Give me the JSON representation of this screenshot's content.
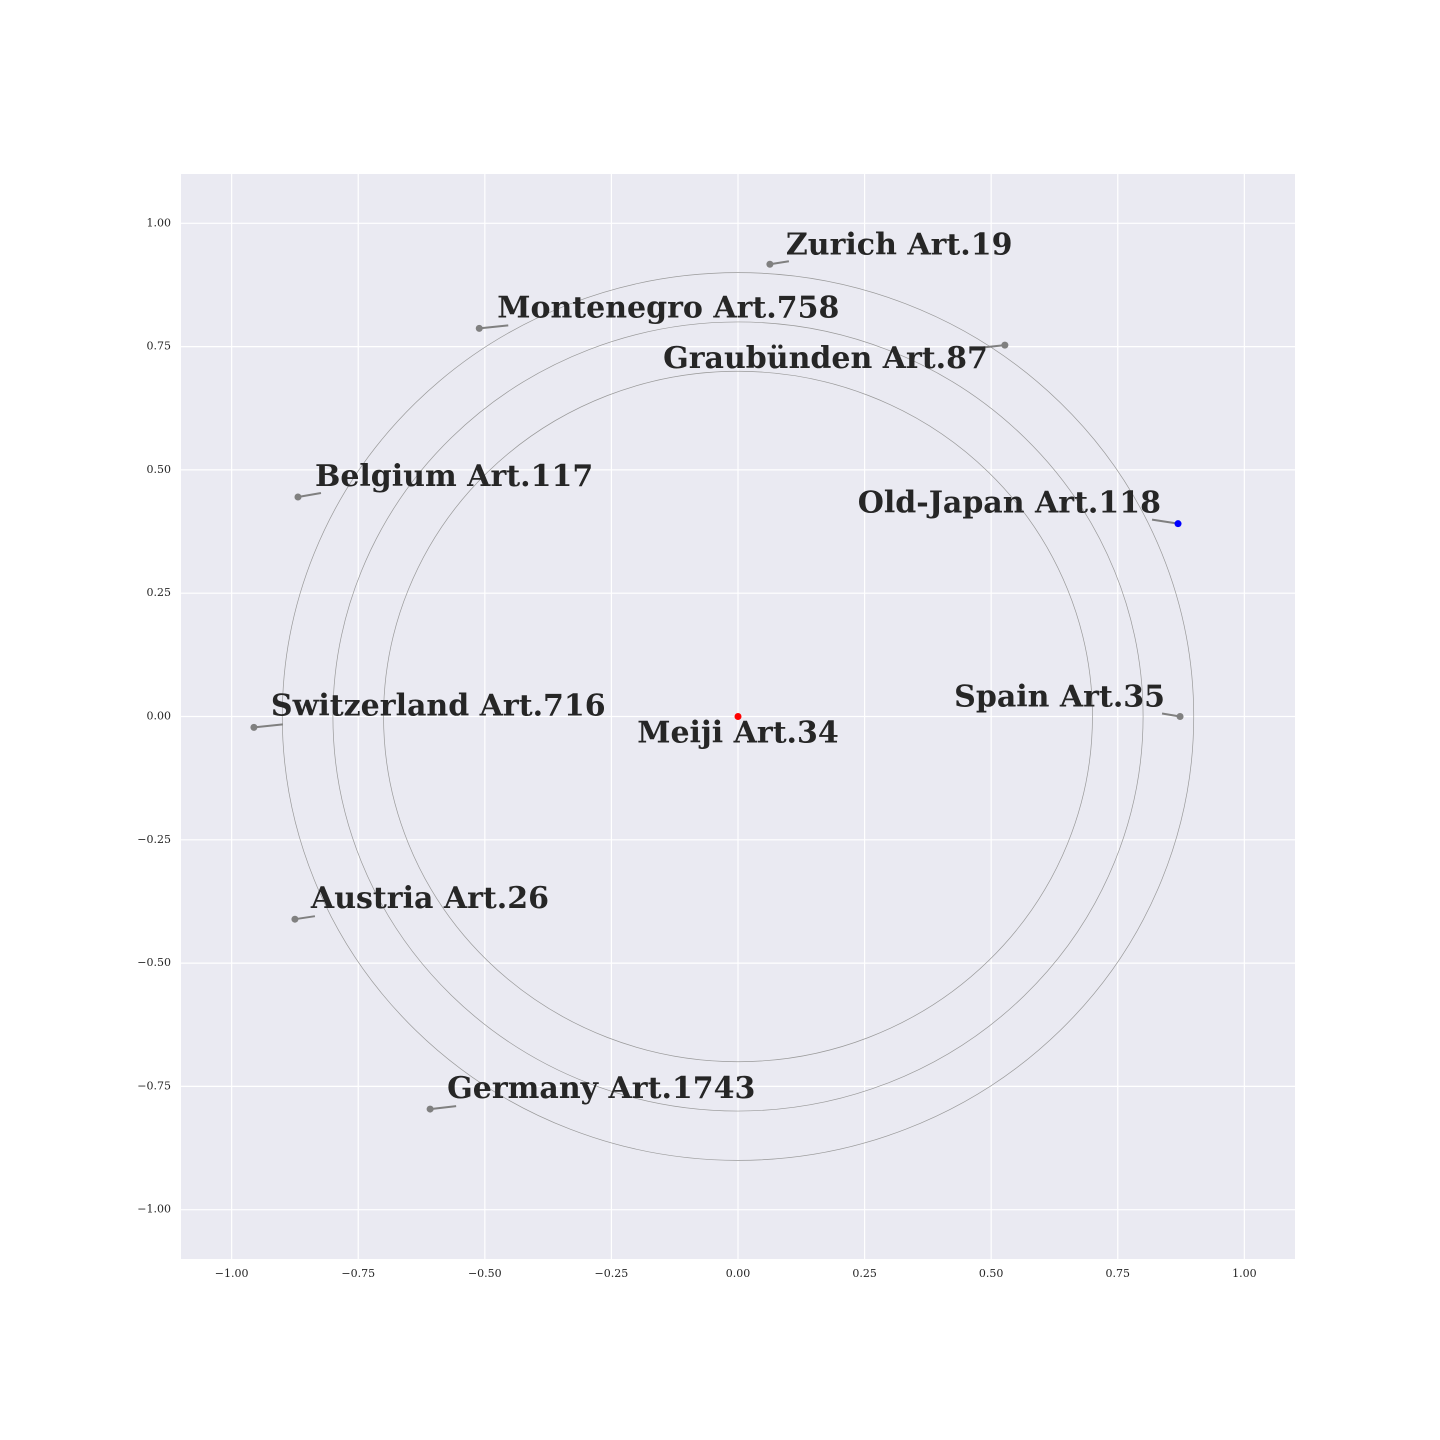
{
  "chart_data": {
    "type": "scatter",
    "labels": [
      "Zurich Art.19",
      "Montenegro Art.758",
      "Graubünden Art.87",
      "Belgium Art.117",
      "Old-Japan Art.118",
      "Switzerland Art.716",
      "Meiji Art.34",
      "Spain Art.35",
      "Austria Art.26",
      "Germany Art.1743"
    ],
    "x": [
      0.063,
      -0.511,
      0.527,
      -0.869,
      0.869,
      -0.956,
      0,
      0.873,
      -0.875,
      -0.608
    ],
    "values": [
      0.917,
      0.787,
      0.753,
      0.445,
      0.391,
      -0.022,
      0,
      0,
      -0.411,
      -0.796
    ],
    "colors": [
      "#808080",
      "#808080",
      "#808080",
      "#808080",
      "#0000ff",
      "#808080",
      "#ff0000",
      "#808080",
      "#808080",
      "#808080"
    ],
    "circles": [
      0.7,
      0.8,
      0.9
    ],
    "xlim": [
      -1.1,
      1.1
    ],
    "ylim": [
      -1.1,
      1.1
    ],
    "xticks": [
      {
        "value": -1,
        "label": "−1.00"
      },
      {
        "value": -0.75,
        "label": "−0.75"
      },
      {
        "value": -0.5,
        "label": "−0.50"
      },
      {
        "value": -0.25,
        "label": "−0.25"
      },
      {
        "value": 0,
        "label": "0.00"
      },
      {
        "value": 0.25,
        "label": "0.25"
      },
      {
        "value": 0.5,
        "label": "0.50"
      },
      {
        "value": 0.75,
        "label": "0.75"
      },
      {
        "value": 1,
        "label": "1.00"
      }
    ],
    "yticks": [
      {
        "value": -1,
        "label": "−1.00"
      },
      {
        "value": -0.75,
        "label": "−0.75"
      },
      {
        "value": -0.5,
        "label": "−0.50"
      },
      {
        "value": -0.25,
        "label": "−0.25"
      },
      {
        "value": 0,
        "label": "0.00"
      },
      {
        "value": 0.25,
        "label": "0.25"
      },
      {
        "value": 0.5,
        "label": "0.50"
      },
      {
        "value": 0.75,
        "label": "0.75"
      },
      {
        "value": 1,
        "label": "1.00"
      }
    ],
    "grid": true
  }
}
